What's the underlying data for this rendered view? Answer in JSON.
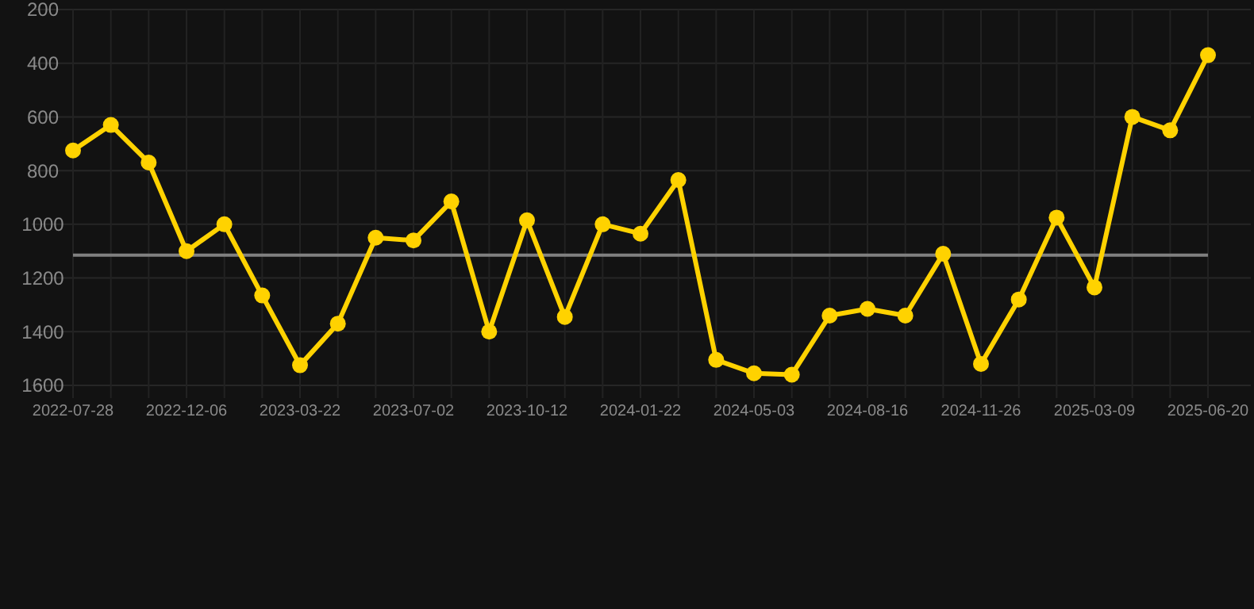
{
  "chart_data": {
    "type": "line",
    "categories": [
      "2022-07-28",
      null,
      null,
      "2022-12-06",
      null,
      null,
      "2023-03-22",
      null,
      null,
      "2023-07-02",
      null,
      null,
      "2023-10-12",
      null,
      null,
      "2024-01-22",
      null,
      null,
      "2024-05-03",
      null,
      null,
      "2024-08-16",
      null,
      null,
      "2024-11-26",
      null,
      null,
      "2025-03-09",
      null,
      null,
      "2025-06-20"
    ],
    "series": [
      {
        "color": "#ffd200",
        "values": [
          725,
          630,
          770,
          1100,
          1000,
          1265,
          1525,
          1370,
          1050,
          1060,
          915,
          1400,
          985,
          1345,
          1000,
          1035,
          835,
          1505,
          1555,
          1560,
          1340,
          1315,
          1340,
          1110,
          1520,
          1280,
          975,
          1235,
          600,
          650,
          370
        ]
      }
    ],
    "ylim": [
      1600,
      200
    ],
    "yticks": [
      200,
      400,
      600,
      800,
      1000,
      1200,
      1400,
      1600
    ],
    "ref_lines": [
      {
        "axis": "y",
        "value": 1115,
        "color": "#808080"
      }
    ],
    "grid": true,
    "marker": "circle",
    "line_style": "solid"
  }
}
